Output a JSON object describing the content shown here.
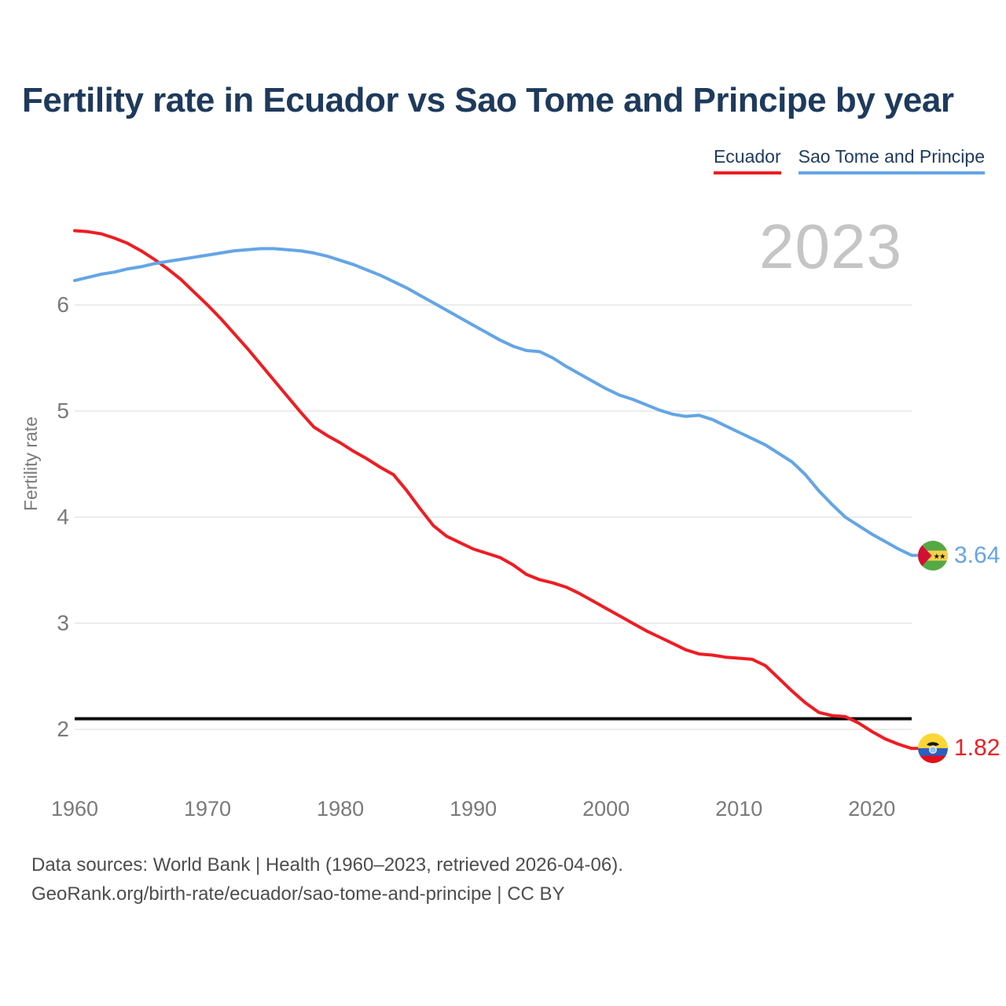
{
  "title": "Fertility rate in Ecuador vs Sao Tome and Principe by year",
  "watermark": "2023",
  "footer": {
    "line1": "Data sources: World Bank | Health (1960–2023, retrieved 2026-04-06).",
    "line2": "GeoRank.org/birth-rate/ecuador/sao-tome-and-principe | CC BY"
  },
  "colors": {
    "title_text": "#1e3a5c",
    "ecuador": "#ee1d23",
    "sao_tome_and_principe": "#64a5e5",
    "gridline": "#ececec",
    "axis_text": "#7a7a7a",
    "footer_text": "#4d4d4d",
    "watermark": "#c5c5c5",
    "replacement_line": "#0a0a0a"
  },
  "chart_data": {
    "type": "line",
    "title": "Fertility rate in Ecuador vs Sao Tome and Principe by year",
    "xlabel": "",
    "ylabel": "Fertility rate",
    "x_ticks": [
      1960,
      1970,
      1980,
      1990,
      2000,
      2010,
      2020
    ],
    "y_ticks": [
      2,
      3,
      4,
      5,
      6
    ],
    "xlim": [
      1960,
      2023
    ],
    "ylim": [
      1.7,
      6.85
    ],
    "grid": "horizontal",
    "legend_position": "top-right",
    "reference_line": {
      "value": 2.1
    },
    "years": [
      1960,
      1961,
      1962,
      1963,
      1964,
      1965,
      1966,
      1967,
      1968,
      1969,
      1970,
      1971,
      1972,
      1973,
      1974,
      1975,
      1976,
      1977,
      1978,
      1979,
      1980,
      1981,
      1982,
      1983,
      1984,
      1985,
      1986,
      1987,
      1988,
      1989,
      1990,
      1991,
      1992,
      1993,
      1994,
      1995,
      1996,
      1997,
      1998,
      1999,
      2000,
      2001,
      2002,
      2003,
      2004,
      2005,
      2006,
      2007,
      2008,
      2009,
      2010,
      2011,
      2012,
      2013,
      2014,
      2015,
      2016,
      2017,
      2018,
      2019,
      2020,
      2021,
      2022,
      2023
    ],
    "series": [
      {
        "name": "Ecuador",
        "color": "#ee1d23",
        "end_label": "1.82",
        "flag": "ecuador-flag-icon",
        "values": [
          6.7,
          6.69,
          6.67,
          6.63,
          6.58,
          6.51,
          6.43,
          6.34,
          6.24,
          6.12,
          6.0,
          5.87,
          5.73,
          5.59,
          5.44,
          5.29,
          5.14,
          4.99,
          4.85,
          4.77,
          4.7,
          4.62,
          4.55,
          4.47,
          4.4,
          4.25,
          4.08,
          3.92,
          3.82,
          3.76,
          3.7,
          3.66,
          3.62,
          3.55,
          3.46,
          3.41,
          3.38,
          3.34,
          3.28,
          3.21,
          3.14,
          3.07,
          3.0,
          2.93,
          2.87,
          2.81,
          2.75,
          2.71,
          2.7,
          2.68,
          2.67,
          2.66,
          2.6,
          2.48,
          2.36,
          2.25,
          2.16,
          2.13,
          2.12,
          2.06,
          1.98,
          1.91,
          1.86,
          1.82
        ]
      },
      {
        "name": "Sao Tome and Principe",
        "color": "#64a5e5",
        "end_label": "3.64",
        "flag": "sao-tome-and-principe-flag-icon",
        "values": [
          6.23,
          6.26,
          6.29,
          6.31,
          6.34,
          6.36,
          6.39,
          6.41,
          6.43,
          6.45,
          6.47,
          6.49,
          6.51,
          6.52,
          6.53,
          6.53,
          6.52,
          6.51,
          6.49,
          6.46,
          6.42,
          6.38,
          6.33,
          6.28,
          6.22,
          6.16,
          6.09,
          6.02,
          5.95,
          5.88,
          5.81,
          5.74,
          5.67,
          5.61,
          5.57,
          5.56,
          5.5,
          5.42,
          5.35,
          5.28,
          5.21,
          5.15,
          5.11,
          5.06,
          5.01,
          4.97,
          4.95,
          4.96,
          4.92,
          4.86,
          4.8,
          4.74,
          4.68,
          4.6,
          4.52,
          4.4,
          4.25,
          4.12,
          4.0,
          3.92,
          3.84,
          3.77,
          3.7,
          3.64
        ]
      }
    ]
  }
}
